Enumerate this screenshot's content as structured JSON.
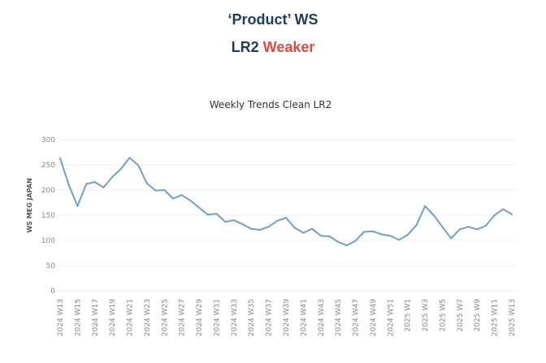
{
  "header": {
    "title": "‘Product’ WS",
    "subtitle_prefix": "LR2",
    "subtitle_status": "Weaker",
    "title_color": "#1f3b5c",
    "status_color": "#e8473f"
  },
  "chart_data": {
    "type": "line",
    "title": "Weekly Trends Clean LR2",
    "xlabel": "",
    "ylabel": "WS MEG JAPAN",
    "ylim": [
      0,
      300
    ],
    "yticks": [
      0,
      50,
      100,
      150,
      200,
      250,
      300
    ],
    "grid": true,
    "line_color": "#6fa0c8",
    "x": [
      "2024 W13",
      "2024 W14",
      "2024 W15",
      "2024 W16",
      "2024 W17",
      "2024 W18",
      "2024 W19",
      "2024 W20",
      "2024 W21",
      "2024 W22",
      "2024 W23",
      "2024 W24",
      "2024 W25",
      "2024 W26",
      "2024 W27",
      "2024 W28",
      "2024 W29",
      "2024 W30",
      "2024 W31",
      "2024 W32",
      "2024 W33",
      "2024 W34",
      "2024 W35",
      "2024 W36",
      "2024 W37",
      "2024 W38",
      "2024 W39",
      "2024 W40",
      "2024 W41",
      "2024 W42",
      "2024 W43",
      "2024 W44",
      "2024 W45",
      "2024 W46",
      "2024 W47",
      "2024 W48",
      "2024 W49",
      "2024 W50",
      "2024 W51",
      "2024 W52",
      "2025 W1",
      "2025 W2",
      "2025 W3",
      "2025 W4",
      "2025 W5",
      "2025 W6",
      "2025 W7",
      "2025 W8",
      "2025 W9",
      "2025 W10",
      "2025 W11",
      "2025 W12",
      "2025 W13"
    ],
    "tick_labels": [
      "2024 W13",
      "2024 W15",
      "2024 W17",
      "2024 W19",
      "2024 W21",
      "2024 W23",
      "2024 W25",
      "2024 W27",
      "2024 W29",
      "2024 W31",
      "2024 W33",
      "2024 W35",
      "2024 W37",
      "2024 W39",
      "2024 W41",
      "2024 W43",
      "2024 W45",
      "2024 W47",
      "2024 W49",
      "2024 W51",
      "2025 W1",
      "2025 W3",
      "2025 W5",
      "2025 W7",
      "2025 W9",
      "2025 W11",
      "2025 W13"
    ],
    "series": [
      {
        "values": [
          263,
          210,
          168,
          212,
          216,
          205,
          226,
          242,
          264,
          249,
          213,
          199,
          200,
          183,
          190,
          179,
          165,
          151,
          153,
          137,
          140,
          132,
          123,
          121,
          127,
          139,
          145,
          125,
          115,
          123,
          109,
          108,
          97,
          90,
          99,
          117,
          118,
          112,
          109,
          101,
          111,
          130,
          168,
          150,
          127,
          104,
          122,
          127,
          122,
          129,
          150,
          162,
          152
        ]
      }
    ]
  }
}
